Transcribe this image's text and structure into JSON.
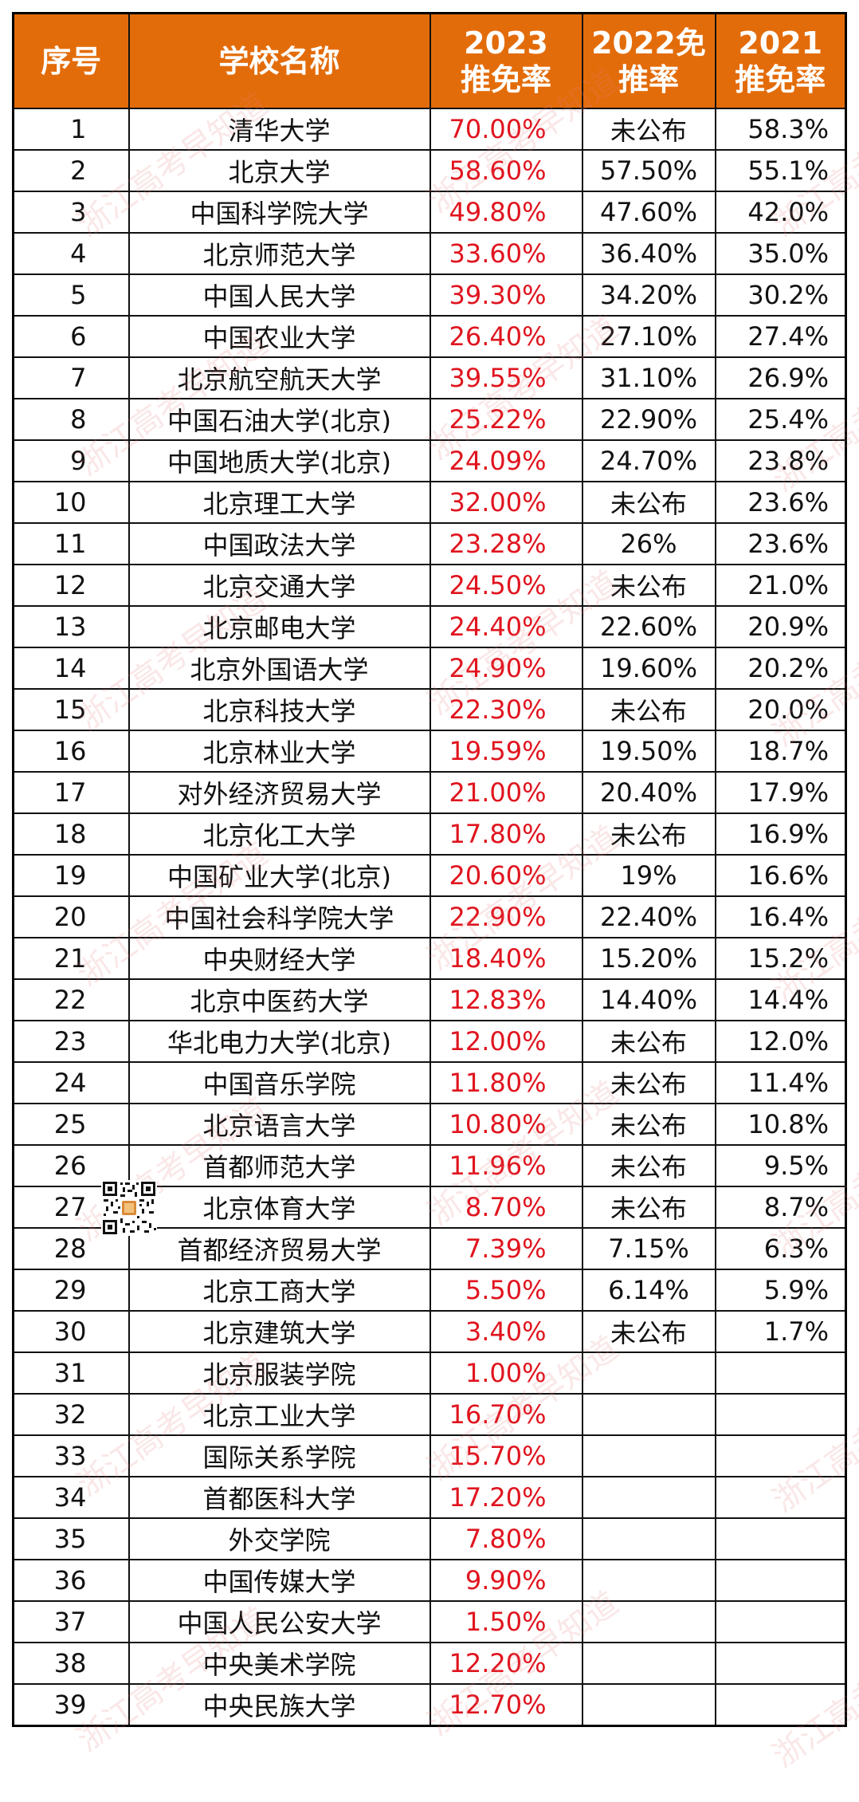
{
  "table": {
    "headers": {
      "no": [
        "序号"
      ],
      "name": [
        "学校名称"
      ],
      "r2023": [
        "2023",
        "推免率"
      ],
      "r2022": [
        "2022免",
        "推率"
      ],
      "r2021": [
        "2021",
        "推免率"
      ]
    },
    "rows": [
      {
        "no": "1",
        "name": "清华大学",
        "r2023": "70.00%",
        "r2022": "未公布",
        "r2021": "58.3%"
      },
      {
        "no": "2",
        "name": "北京大学",
        "r2023": "58.60%",
        "r2022": "57.50%",
        "r2021": "55.1%"
      },
      {
        "no": "3",
        "name": "中国科学院大学",
        "r2023": "49.80%",
        "r2022": "47.60%",
        "r2021": "42.0%"
      },
      {
        "no": "4",
        "name": "北京师范大学",
        "r2023": "33.60%",
        "r2022": "36.40%",
        "r2021": "35.0%"
      },
      {
        "no": "5",
        "name": "中国人民大学",
        "r2023": "39.30%",
        "r2022": "34.20%",
        "r2021": "30.2%"
      },
      {
        "no": "6",
        "name": "中国农业大学",
        "r2023": "26.40%",
        "r2022": "27.10%",
        "r2021": "27.4%"
      },
      {
        "no": "7",
        "name": "北京航空航天大学",
        "r2023": "39.55%",
        "r2022": "31.10%",
        "r2021": "26.9%"
      },
      {
        "no": "8",
        "name": "中国石油大学(北京)",
        "r2023": "25.22%",
        "r2022": "22.90%",
        "r2021": "25.4%"
      },
      {
        "no": "9",
        "name": "中国地质大学(北京)",
        "r2023": "24.09%",
        "r2022": "24.70%",
        "r2021": "23.8%"
      },
      {
        "no": "10",
        "name": "北京理工大学",
        "r2023": "32.00%",
        "r2022": "未公布",
        "r2021": "23.6%"
      },
      {
        "no": "11",
        "name": "中国政法大学",
        "r2023": "23.28%",
        "r2022": "26%",
        "r2021": "23.6%"
      },
      {
        "no": "12",
        "name": "北京交通大学",
        "r2023": "24.50%",
        "r2022": "未公布",
        "r2021": "21.0%"
      },
      {
        "no": "13",
        "name": "北京邮电大学",
        "r2023": "24.40%",
        "r2022": "22.60%",
        "r2021": "20.9%"
      },
      {
        "no": "14",
        "name": "北京外国语大学",
        "r2023": "24.90%",
        "r2022": "19.60%",
        "r2021": "20.2%"
      },
      {
        "no": "15",
        "name": "北京科技大学",
        "r2023": "22.30%",
        "r2022": "未公布",
        "r2021": "20.0%"
      },
      {
        "no": "16",
        "name": "北京林业大学",
        "r2023": "19.59%",
        "r2022": "19.50%",
        "r2021": "18.7%"
      },
      {
        "no": "17",
        "name": "对外经济贸易大学",
        "r2023": "21.00%",
        "r2022": "20.40%",
        "r2021": "17.9%"
      },
      {
        "no": "18",
        "name": "北京化工大学",
        "r2023": "17.80%",
        "r2022": "未公布",
        "r2021": "16.9%"
      },
      {
        "no": "19",
        "name": "中国矿业大学(北京)",
        "r2023": "20.60%",
        "r2022": "19%",
        "r2021": "16.6%"
      },
      {
        "no": "20",
        "name": "中国社会科学院大学",
        "r2023": "22.90%",
        "r2022": "22.40%",
        "r2021": "16.4%"
      },
      {
        "no": "21",
        "name": "中央财经大学",
        "r2023": "18.40%",
        "r2022": "15.20%",
        "r2021": "15.2%"
      },
      {
        "no": "22",
        "name": "北京中医药大学",
        "r2023": "12.83%",
        "r2022": "14.40%",
        "r2021": "14.4%"
      },
      {
        "no": "23",
        "name": "华北电力大学(北京)",
        "r2023": "12.00%",
        "r2022": "未公布",
        "r2021": "12.0%"
      },
      {
        "no": "24",
        "name": "中国音乐学院",
        "r2023": "11.80%",
        "r2022": "未公布",
        "r2021": "11.4%"
      },
      {
        "no": "25",
        "name": "北京语言大学",
        "r2023": "10.80%",
        "r2022": "未公布",
        "r2021": "10.8%"
      },
      {
        "no": "26",
        "name": "首都师范大学",
        "r2023": "11.96%",
        "r2022": "未公布",
        "r2021": "9.5%"
      },
      {
        "no": "27",
        "name": "北京体育大学",
        "r2023": "8.70%",
        "r2022": "未公布",
        "r2021": "8.7%"
      },
      {
        "no": "28",
        "name": "首都经济贸易大学",
        "r2023": "7.39%",
        "r2022": "7.15%",
        "r2021": "6.3%"
      },
      {
        "no": "29",
        "name": "北京工商大学",
        "r2023": "5.50%",
        "r2022": "6.14%",
        "r2021": "5.9%"
      },
      {
        "no": "30",
        "name": "北京建筑大学",
        "r2023": "3.40%",
        "r2022": "未公布",
        "r2021": "1.7%"
      },
      {
        "no": "31",
        "name": "北京服装学院",
        "r2023": "1.00%",
        "r2022": "",
        "r2021": ""
      },
      {
        "no": "32",
        "name": "北京工业大学",
        "r2023": "16.70%",
        "r2022": "",
        "r2021": ""
      },
      {
        "no": "33",
        "name": "国际关系学院",
        "r2023": "15.70%",
        "r2022": "",
        "r2021": ""
      },
      {
        "no": "34",
        "name": "首都医科大学",
        "r2023": "17.20%",
        "r2022": "",
        "r2021": ""
      },
      {
        "no": "35",
        "name": "外交学院",
        "r2023": "7.80%",
        "r2022": "",
        "r2021": ""
      },
      {
        "no": "36",
        "name": "中国传媒大学",
        "r2023": "9.90%",
        "r2022": "",
        "r2021": ""
      },
      {
        "no": "37",
        "name": "中国人民公安大学",
        "r2023": "1.50%",
        "r2022": "",
        "r2021": ""
      },
      {
        "no": "38",
        "name": "中央美术学院",
        "r2023": "12.20%",
        "r2022": "",
        "r2021": ""
      },
      {
        "no": "39",
        "name": "中央民族大学",
        "r2023": "12.70%",
        "r2022": "",
        "r2021": ""
      }
    ]
  },
  "watermark": {
    "text": "浙江高考早知道"
  },
  "qr_code": {
    "icon": "qr-code-icon"
  },
  "colors": {
    "header_bg": "#e36c0a",
    "header_text": "#ffffff",
    "highlight_2023": "#e0141e",
    "body_text": "#111111",
    "border": "#111111"
  }
}
